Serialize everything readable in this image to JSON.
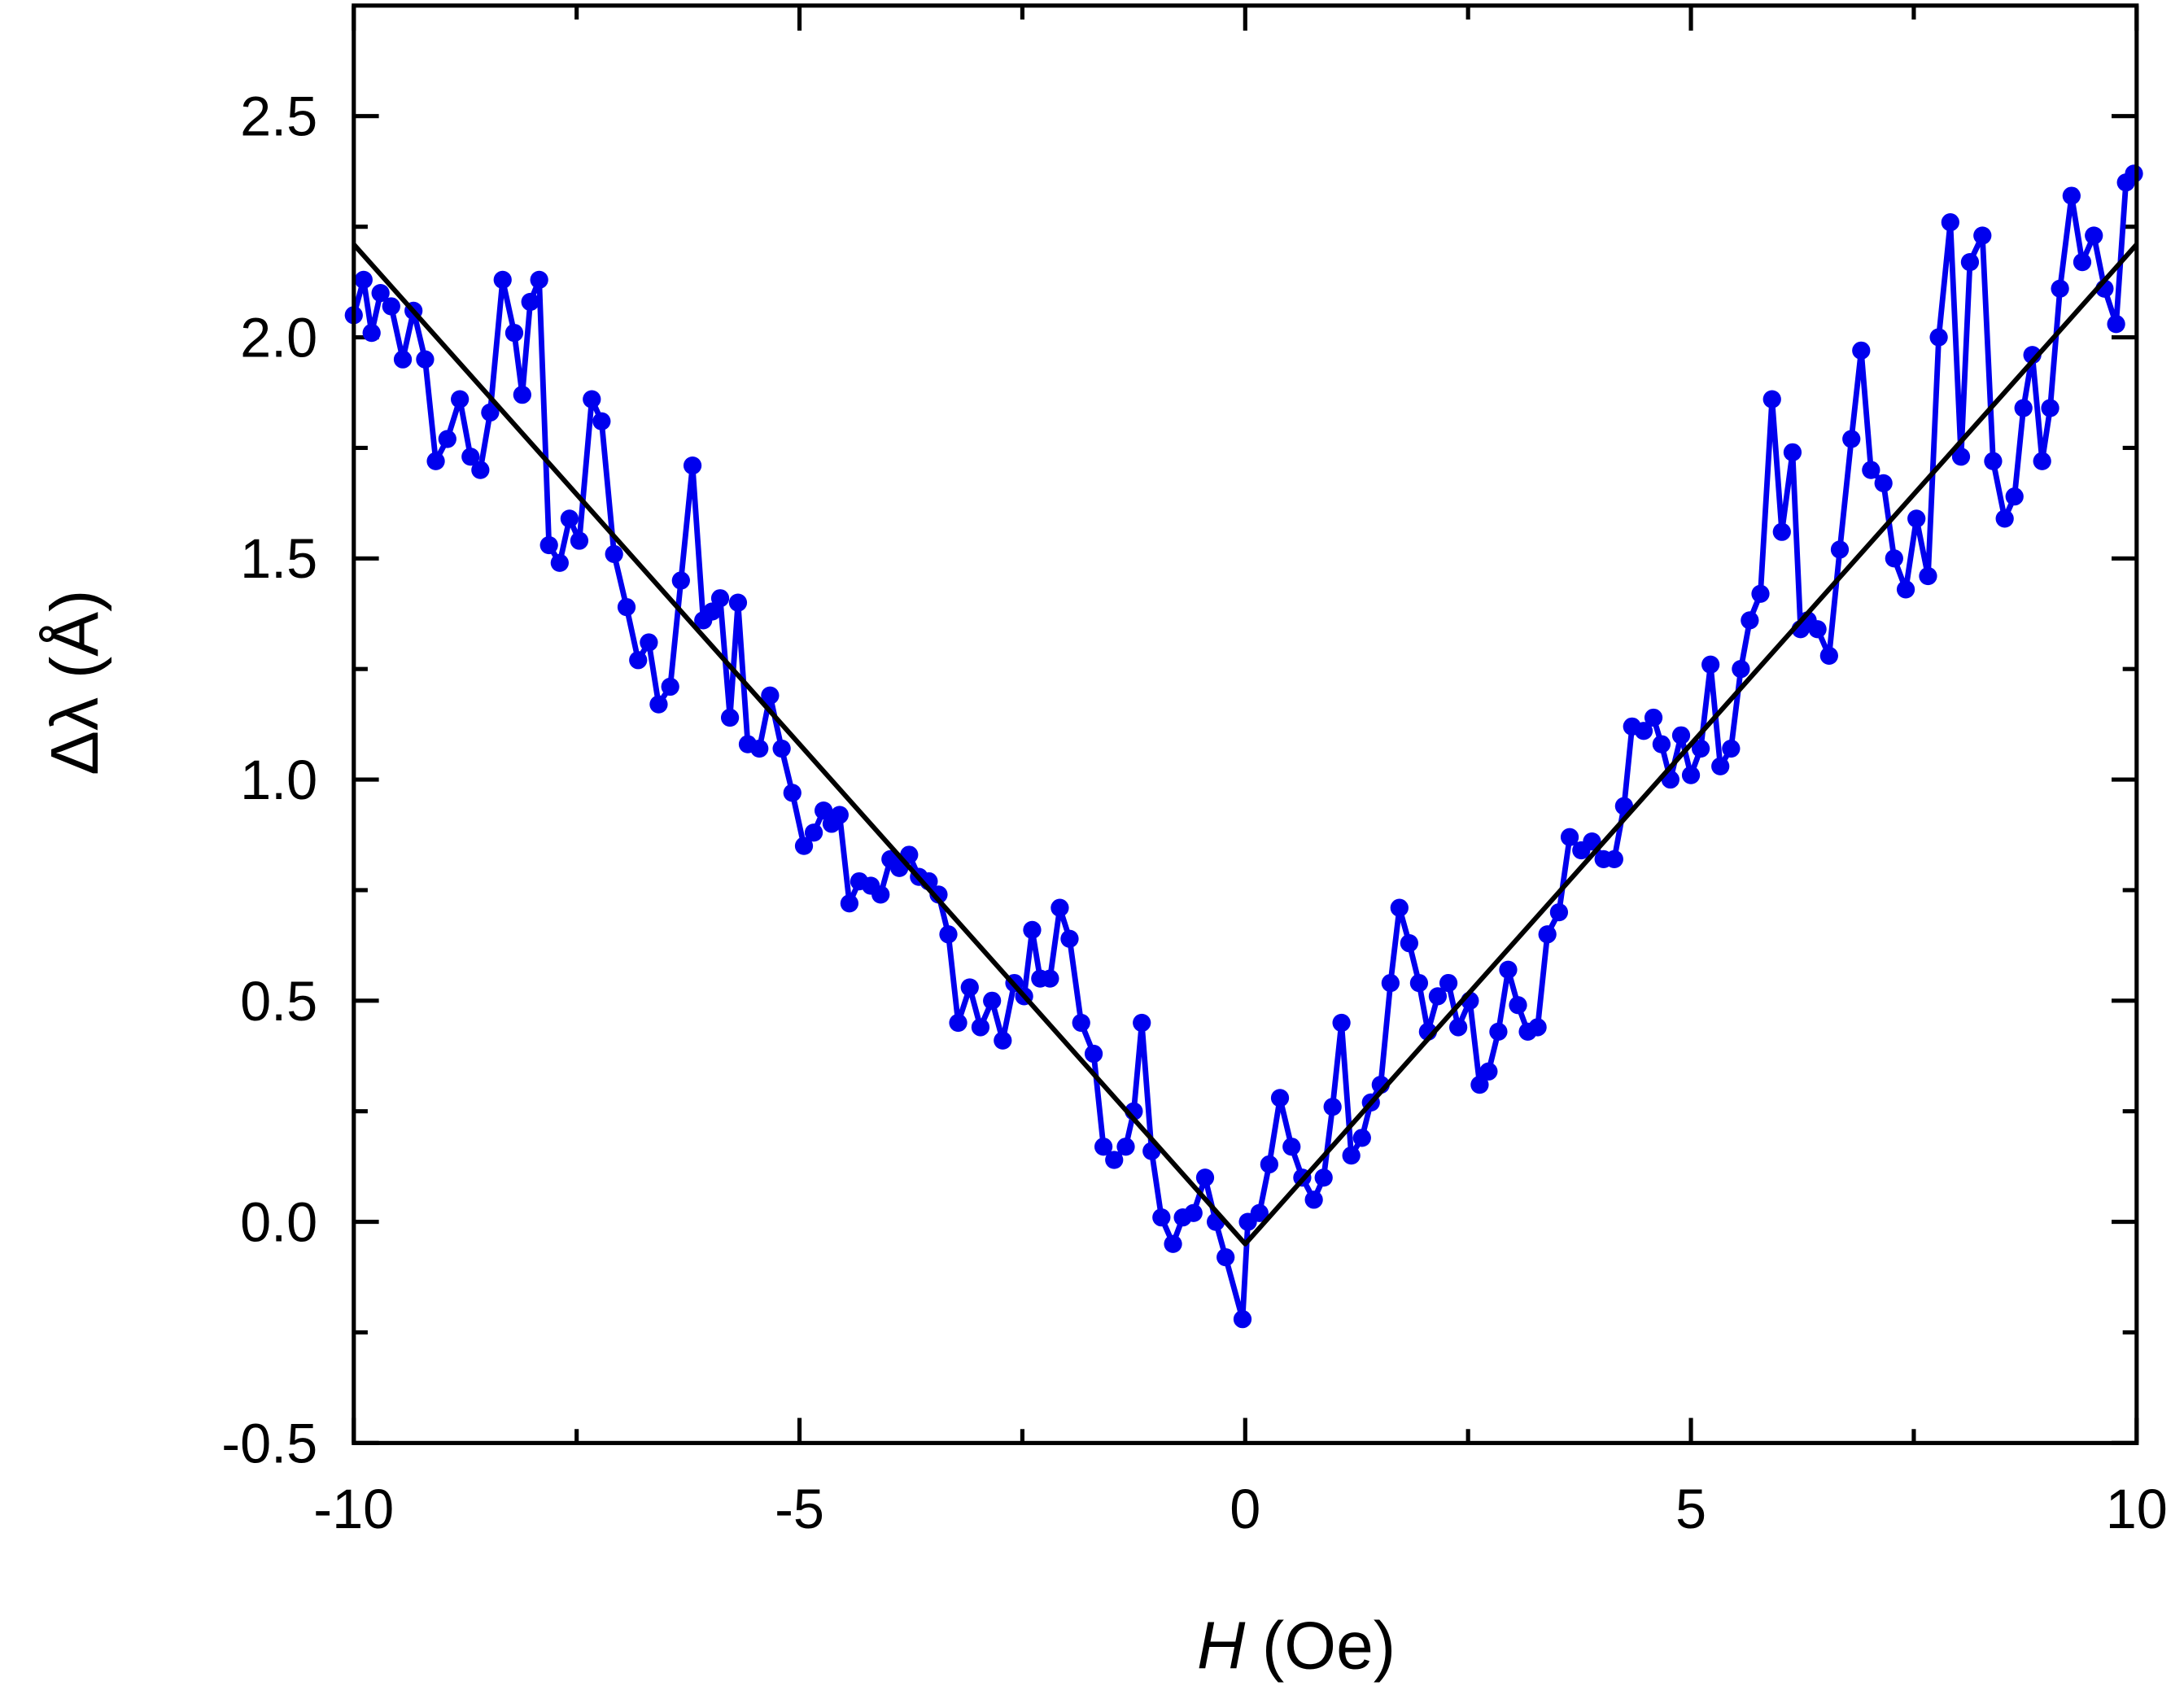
{
  "chart_data": {
    "type": "line",
    "ylabel": "Δλ (Å)",
    "xlabel": {
      "symbol": "H",
      "unit": "(Oe)"
    },
    "xlim": [
      -10,
      10
    ],
    "ylim": [
      -0.5,
      2.75
    ],
    "xticks": [
      -10,
      -5,
      0,
      5,
      10
    ],
    "xminorticks": [
      -7.5,
      -2.5,
      2.5,
      7.5
    ],
    "yticks": [
      -0.5,
      {
        "value": 0,
        "label": "0.0"
      },
      0.5,
      {
        "value": 1,
        "label": "1.0"
      },
      1.5,
      {
        "value": 2,
        "label": "2.0"
      },
      2.5
    ],
    "yminorticks": [
      -0.25,
      0.25,
      0.75,
      1.25,
      1.75,
      2.25
    ],
    "series": [
      {
        "color": "#0000ee",
        "marker": "circle",
        "x": [
          -10.0,
          -9.89,
          -9.8,
          -9.7,
          -9.58,
          -9.45,
          -9.33,
          -9.2,
          -9.08,
          -8.95,
          -8.81,
          -8.69,
          -8.58,
          -8.47,
          -8.33,
          -8.2,
          -8.11,
          -8.02,
          -7.92,
          -7.81,
          -7.69,
          -7.58,
          -7.47,
          -7.33,
          -7.22,
          -7.08,
          -6.94,
          -6.81,
          -6.69,
          -6.58,
          -6.45,
          -6.33,
          -6.2,
          -6.08,
          -5.98,
          -5.89,
          -5.78,
          -5.69,
          -5.58,
          -5.45,
          -5.33,
          -5.2,
          -5.08,
          -4.95,
          -4.84,
          -4.73,
          -4.64,
          -4.55,
          -4.44,
          -4.33,
          -4.2,
          -4.09,
          -3.98,
          -3.88,
          -3.77,
          -3.66,
          -3.55,
          -3.44,
          -3.33,
          -3.22,
          -3.09,
          -2.97,
          -2.84,
          -2.72,
          -2.59,
          -2.48,
          -2.39,
          -2.3,
          -2.19,
          -2.08,
          -1.97,
          -1.84,
          -1.7,
          -1.59,
          -1.47,
          -1.34,
          -1.25,
          -1.16,
          -1.05,
          -0.94,
          -0.81,
          -0.7,
          -0.58,
          -0.45,
          -0.33,
          -0.22,
          -0.03,
          0.03,
          0.16,
          0.27,
          0.39,
          0.52,
          0.64,
          0.77,
          0.88,
          0.98,
          1.08,
          1.19,
          1.31,
          1.41,
          1.52,
          1.63,
          1.73,
          1.84,
          1.95,
          2.05,
          2.16,
          2.28,
          2.39,
          2.52,
          2.63,
          2.73,
          2.84,
          2.95,
          3.06,
          3.17,
          3.28,
          3.39,
          3.52,
          3.64,
          3.77,
          3.89,
          4.02,
          4.14,
          4.25,
          4.34,
          4.47,
          4.58,
          4.67,
          4.77,
          4.89,
          5.0,
          5.11,
          5.22,
          5.33,
          5.45,
          5.56,
          5.66,
          5.78,
          5.91,
          6.02,
          6.14,
          6.23,
          6.31,
          6.42,
          6.55,
          6.67,
          6.8,
          6.91,
          7.02,
          7.16,
          7.28,
          7.41,
          7.53,
          7.66,
          7.78,
          7.91,
          8.03,
          8.13,
          8.27,
          8.39,
          8.52,
          8.63,
          8.73,
          8.83,
          8.94,
          9.03,
          9.14,
          9.27,
          9.39,
          9.52,
          9.64,
          9.77,
          9.88,
          9.97
        ],
        "values": [
          2.05,
          2.13,
          2.01,
          2.1,
          2.07,
          1.95,
          2.06,
          1.95,
          1.72,
          1.77,
          1.86,
          1.73,
          1.7,
          1.83,
          2.13,
          2.01,
          1.87,
          2.08,
          2.13,
          1.53,
          1.49,
          1.59,
          1.54,
          1.86,
          1.81,
          1.51,
          1.39,
          1.27,
          1.31,
          1.17,
          1.21,
          1.45,
          1.71,
          1.36,
          1.38,
          1.41,
          1.14,
          1.4,
          1.08,
          1.07,
          1.19,
          1.07,
          0.97,
          0.85,
          0.88,
          0.93,
          0.9,
          0.92,
          0.72,
          0.77,
          0.76,
          0.74,
          0.82,
          0.8,
          0.83,
          0.78,
          0.77,
          0.74,
          0.65,
          0.45,
          0.53,
          0.44,
          0.5,
          0.41,
          0.54,
          0.51,
          0.66,
          0.55,
          0.55,
          0.71,
          0.64,
          0.45,
          0.38,
          0.17,
          0.14,
          0.17,
          0.25,
          0.45,
          0.16,
          0.01,
          -0.05,
          0.01,
          0.02,
          0.1,
          0.0,
          -0.08,
          -0.22,
          0.0,
          0.02,
          0.13,
          0.28,
          0.17,
          0.1,
          0.05,
          0.1,
          0.26,
          0.45,
          0.15,
          0.19,
          0.27,
          0.31,
          0.54,
          0.71,
          0.63,
          0.54,
          0.43,
          0.51,
          0.54,
          0.44,
          0.5,
          0.31,
          0.34,
          0.43,
          0.57,
          0.49,
          0.43,
          0.44,
          0.65,
          0.7,
          0.87,
          0.84,
          0.86,
          0.82,
          0.82,
          0.94,
          1.12,
          1.11,
          1.14,
          1.08,
          1.0,
          1.1,
          1.01,
          1.07,
          1.26,
          1.03,
          1.07,
          1.25,
          1.36,
          1.42,
          1.86,
          1.56,
          1.74,
          1.34,
          1.36,
          1.34,
          1.28,
          1.52,
          1.77,
          1.97,
          1.7,
          1.67,
          1.5,
          1.43,
          1.59,
          1.46,
          2.0,
          2.26,
          1.73,
          2.17,
          2.23,
          1.72,
          1.59,
          1.64,
          1.84,
          1.96,
          1.72,
          1.84,
          2.11,
          2.32,
          2.17,
          2.23,
          2.11,
          2.03,
          2.35,
          2.37
        ]
      },
      {
        "color": "#000000",
        "marker": null,
        "x": [
          -10,
          0,
          10
        ],
        "values": [
          2.21,
          -0.05,
          2.21
        ]
      }
    ]
  }
}
